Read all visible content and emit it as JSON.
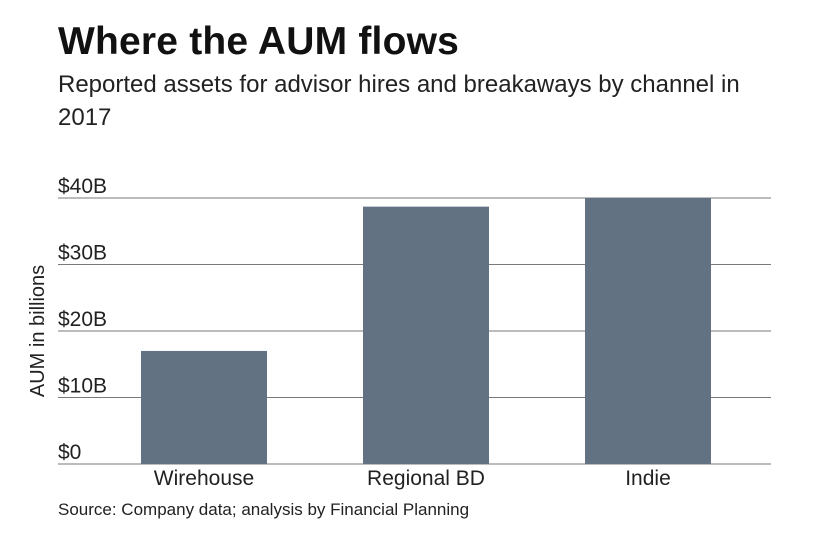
{
  "header": {
    "title": "Where the AUM flows",
    "subtitle": "Reported assets for advisor hires and breakaways by channel in 2017"
  },
  "footer": {
    "source": "Source: Company data; analysis by Financial Planning"
  },
  "colors": {
    "bar": "#637282",
    "grid": "#7a7a7a"
  },
  "chart_data": {
    "type": "bar",
    "title": "Where the AUM flows",
    "subtitle": "Reported assets for advisor hires and breakaways by channel in 2017",
    "xlabel": "",
    "ylabel": "AUM in billions",
    "categories": [
      "Wirehouse",
      "Regional BD",
      "Indie"
    ],
    "values": [
      17,
      38.7,
      40
    ],
    "ylim": [
      0,
      40
    ],
    "yticks": [
      0,
      10,
      20,
      30,
      40
    ],
    "ytick_labels": [
      "$0",
      "$10B",
      "$20B",
      "$30B",
      "$40B"
    ],
    "grid": true,
    "legend": "none"
  }
}
